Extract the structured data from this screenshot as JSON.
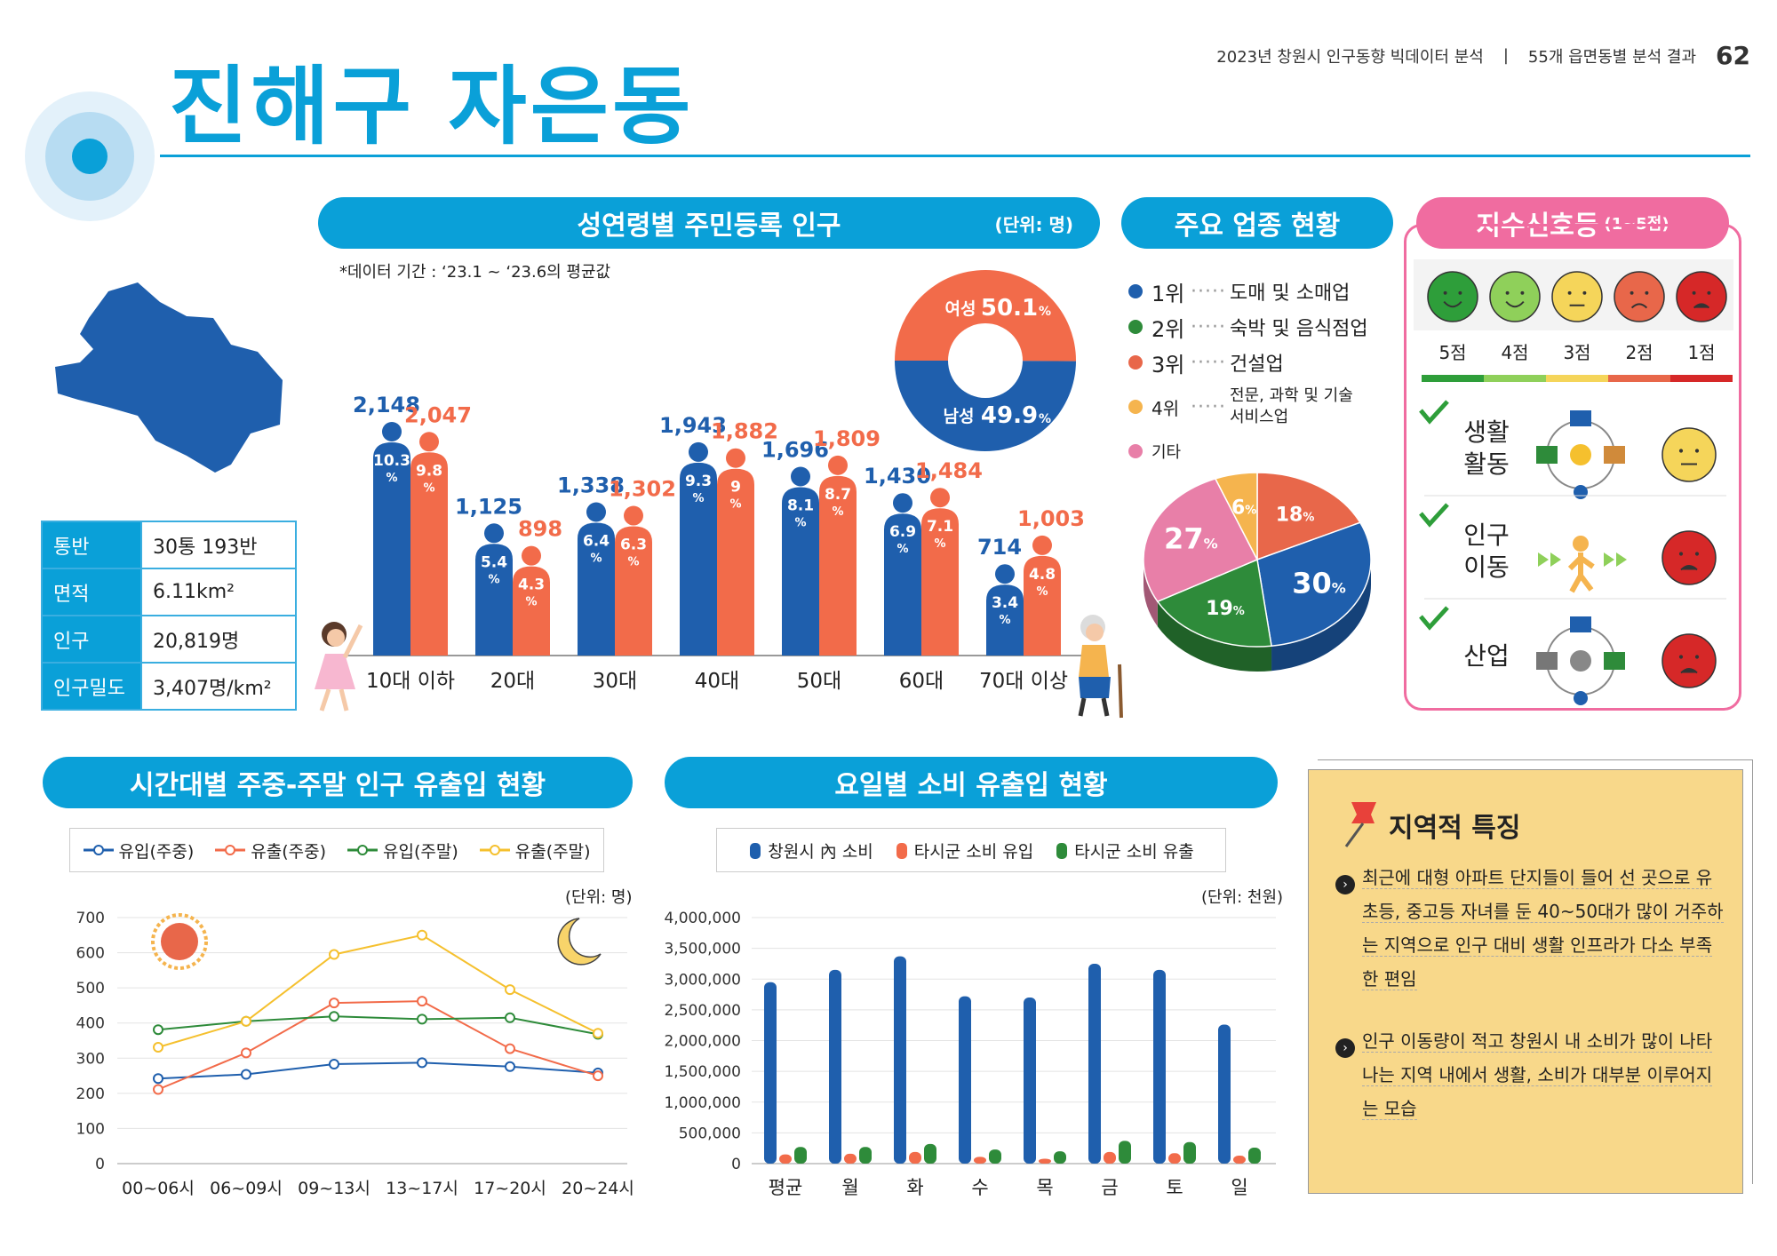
{
  "header": {
    "report": "2023년 창원시 인구동향 빅데이터 분석",
    "section": "55개 읍면동별 분석 결과",
    "page": "62"
  },
  "title": "진해구 자은동",
  "info": [
    {
      "k": "통반",
      "v": "30통 193반"
    },
    {
      "k": "면적",
      "v": "6.11km²"
    },
    {
      "k": "인구",
      "v": "20,819명"
    },
    {
      "k": "인구밀도",
      "v": "3,407명/km²"
    }
  ],
  "pop": {
    "title": "성연령별 주민등록 인구",
    "unit": "(단위: 명)",
    "note": "*데이터 기간 : ‘23.1 ~ ‘23.6의 평균값"
  },
  "gender": {
    "female_label": "여성",
    "female_value": "50.1",
    "female_pct": 50.1,
    "male_label": "남성",
    "male_value": "49.9",
    "male_pct": 49.9,
    "pct_sign": "%"
  },
  "industry": {
    "title": "주요 업종 현황",
    "items": [
      {
        "rank": "1위",
        "label": "도매 및 소매업",
        "color": "#1f5fad"
      },
      {
        "rank": "2위",
        "label": "숙박 및 음식점업",
        "color": "#2e8b3a"
      },
      {
        "rank": "3위",
        "label": "건설업",
        "color": "#e8674a"
      },
      {
        "rank": "4위",
        "label": "전문, 과학 및 기술 서비스업",
        "color": "#f5b44e"
      },
      {
        "rank": "",
        "label": "기타",
        "color": "#e87fa8"
      }
    ]
  },
  "signal": {
    "title": "지수신호등",
    "range": "(1~5점)",
    "scores": [
      "5점",
      "4점",
      "3점",
      "2점",
      "1점"
    ],
    "colors": [
      "#2e9e3a",
      "#8fd05a",
      "#f5d55a",
      "#e8674a",
      "#d62828"
    ],
    "rows": [
      {
        "label1": "생활",
        "label2": "활동",
        "score": 3
      },
      {
        "label1": "인구",
        "label2": "이동",
        "score": 1
      },
      {
        "label1": "산업",
        "label2": "",
        "score": 1
      }
    ]
  },
  "flow": {
    "title": "시간대별 주중-주말 인구 유출입 현황",
    "unit": "(단위: 명)"
  },
  "spend": {
    "title": "요일별 소비 유출입 현황",
    "unit": "(단위: 천원)"
  },
  "notes": {
    "title": "지역적 특징",
    "items": [
      "최근에 대형 아파트 단지들이 들어 선 곳으로 유초등, 중고등 자녀를 둔 40~50대가 많이 거주하는 지역으로 인구 대비 생활 인프라가 다소 부족한 편임",
      "인구 이동량이 적고 창원시 내 소비가 많이 나타나는 지역 내에서 생활, 소비가 대부분 이루어지는 모습"
    ]
  },
  "chart_data": [
    {
      "type": "bar",
      "title": "성연령별 주민등록 인구",
      "categories": [
        "10대 이하",
        "20대",
        "30대",
        "40대",
        "50대",
        "60대",
        "70대 이상"
      ],
      "series": [
        {
          "name": "남성",
          "color": "#1f5fad",
          "values": [
            2148,
            1125,
            1338,
            1943,
            1696,
            1430,
            714
          ],
          "labels": [
            "2,148",
            "1,125",
            "1,338",
            "1,943",
            "1,696",
            "1,430",
            "714"
          ],
          "pct": [
            "10.3",
            "5.4",
            "6.4",
            "9.3",
            "8.1",
            "6.9",
            "3.4"
          ]
        },
        {
          "name": "여성",
          "color": "#f26b4a",
          "values": [
            2047,
            898,
            1302,
            1882,
            1809,
            1484,
            1003
          ],
          "labels": [
            "2,047",
            "898",
            "1,302",
            "1,882",
            "1,809",
            "1,484",
            "1,003"
          ],
          "pct": [
            "9.8",
            "4.3",
            "6.3",
            "9",
            "8.7",
            "7.1",
            "4.8"
          ]
        }
      ],
      "pct_sign": "%"
    },
    {
      "type": "pie",
      "title": "주요 업종 현황",
      "slices": [
        {
          "label": "1위",
          "value": 30,
          "color": "#1f5fad"
        },
        {
          "label": "2위",
          "value": 19,
          "color": "#2e8b3a"
        },
        {
          "label": "3위",
          "value": 18,
          "color": "#e8674a"
        },
        {
          "label": "4위",
          "value": 6,
          "color": "#f5b44e"
        },
        {
          "label": "기타",
          "value": 27,
          "color": "#e87fa8"
        }
      ],
      "pct_sign": "%"
    },
    {
      "type": "line",
      "title": "시간대별 주중-주말 인구 유출입 현황",
      "categories": [
        "00~06시",
        "06~09시",
        "09~13시",
        "13~17시",
        "17~20시",
        "20~24시"
      ],
      "ylim": [
        0,
        700
      ],
      "yticks": [
        0,
        100,
        200,
        300,
        400,
        500,
        600,
        700
      ],
      "grid": true,
      "series": [
        {
          "name": "유입(주중)",
          "color": "#1f5fad",
          "values": [
            242,
            254,
            283,
            287,
            276,
            258
          ]
        },
        {
          "name": "유출(주중)",
          "color": "#f26b4a",
          "values": [
            211,
            315,
            457,
            462,
            327,
            250
          ]
        },
        {
          "name": "유입(주말)",
          "color": "#2e8b3a",
          "values": [
            381,
            405,
            419,
            411,
            415,
            368
          ]
        },
        {
          "name": "유출(주말)",
          "color": "#f5c02e",
          "values": [
            331,
            405,
            595,
            650,
            495,
            371
          ]
        }
      ]
    },
    {
      "type": "bar",
      "title": "요일별 소비 유출입 현황",
      "categories": [
        "평균",
        "월",
        "화",
        "수",
        "목",
        "금",
        "토",
        "일"
      ],
      "ylim": [
        0,
        4000000
      ],
      "yticks": [
        "0",
        "500,000",
        "1,000,000",
        "1,500,000",
        "2,000,000",
        "2,500,000",
        "3,000,000",
        "3,500,000",
        "4,000,000"
      ],
      "grid": true,
      "series": [
        {
          "name": "창원시 內 소비",
          "color": "#1f5fad",
          "values": [
            2950000,
            3150000,
            3370000,
            2720000,
            2700000,
            3250000,
            3150000,
            2260000
          ]
        },
        {
          "name": "타시군 소비 유입",
          "color": "#f26b4a",
          "values": [
            150000,
            160000,
            190000,
            110000,
            80000,
            190000,
            170000,
            130000
          ]
        },
        {
          "name": "타시군 소비 유출",
          "color": "#2e8b3a",
          "values": [
            270000,
            270000,
            320000,
            230000,
            200000,
            370000,
            350000,
            260000
          ]
        }
      ]
    }
  ]
}
